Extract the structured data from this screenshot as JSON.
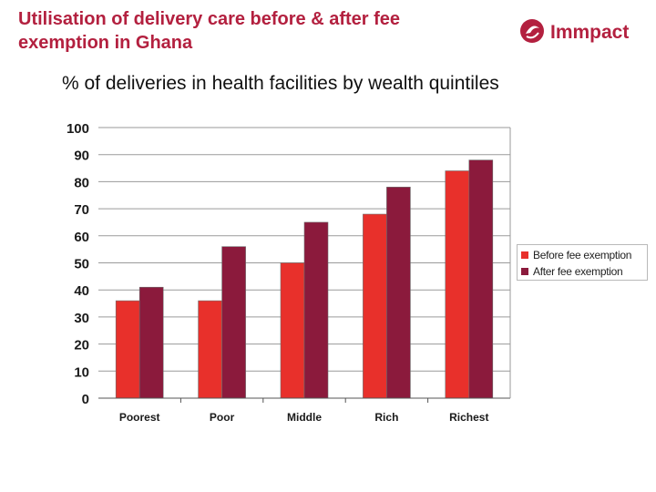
{
  "header": {
    "title_line1": "Utilisation of delivery care before & after fee",
    "title_line2": "exemption in Ghana",
    "logo_text": "Immpact",
    "subtitle": "% of deliveries in health facilities by wealth quintiles"
  },
  "colors": {
    "title": "#b3203f",
    "before": "#e8302b",
    "after": "#8b1a3c",
    "logo": "#b3203f"
  },
  "chart_data": {
    "type": "bar",
    "categories": [
      "Poorest",
      "Poor",
      "Middle",
      "Rich",
      "Richest"
    ],
    "series": [
      {
        "name": "Before fee exemption",
        "values": [
          36,
          36,
          50,
          68,
          84
        ]
      },
      {
        "name": "After fee exemption",
        "values": [
          41,
          56,
          65,
          78,
          88
        ]
      }
    ],
    "y_ticks": [
      "0",
      "10",
      "20",
      "30",
      "40",
      "50",
      "60",
      "70",
      "80",
      "90",
      "100"
    ],
    "ylim": [
      0,
      100
    ],
    "grid": "horizontal",
    "legend_position": "right"
  }
}
